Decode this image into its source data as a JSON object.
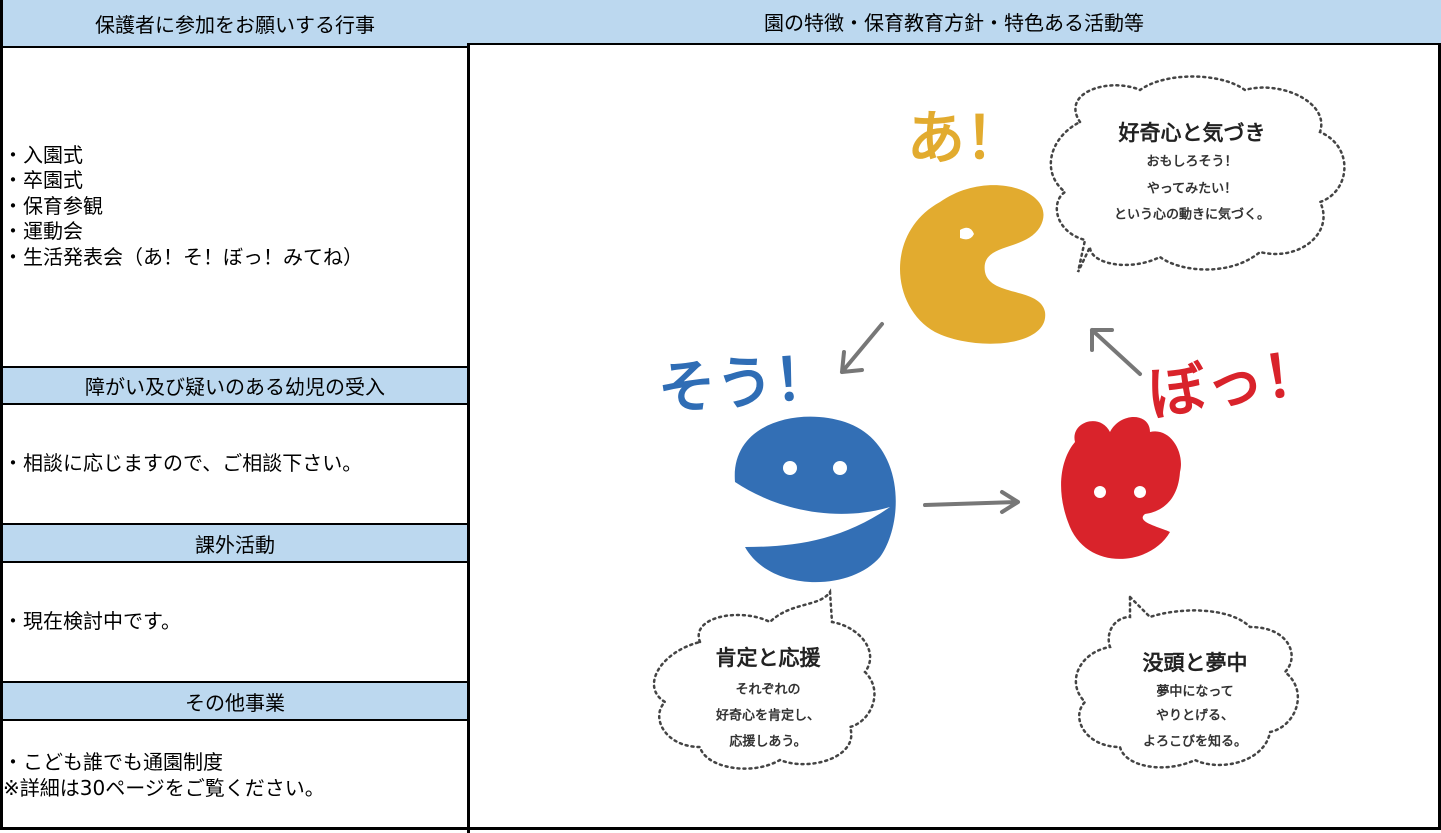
{
  "left": {
    "sections": [
      {
        "title": "保護者に参加をお願いする行事",
        "items": [
          "・入園式",
          "・卒園式",
          "・保育参観",
          "・運動会",
          "・生活発表会（あ！そ！ぼっ！みてね）"
        ]
      },
      {
        "title": "障がい及び疑いのある幼児の受入",
        "items": [
          "・相談に応じますので、ご相談下さい。"
        ]
      },
      {
        "title": "課外活動",
        "items": [
          "・現在検討中です。"
        ]
      },
      {
        "title": "その他事業",
        "items": [
          "・こども誰でも通園制度",
          "※詳細は30ページをご覧ください。"
        ]
      }
    ]
  },
  "right": {
    "title": "園の特徴・保育教育方針・特色ある活動等",
    "illustration": {
      "stages": [
        {
          "exclaim": "あ！",
          "caption": "好奇心と気づき",
          "lines": [
            "おもしろそう！",
            "やってみたい！",
            "という心の動きに気づく。"
          ]
        },
        {
          "exclaim": "そう！",
          "caption": "肯定と応援",
          "lines": [
            "それぞれの",
            "好奇心を肯定し、",
            "応援しあう。"
          ]
        },
        {
          "exclaim": "ぼっ！",
          "caption": "没頭と夢中",
          "lines": [
            "夢中になって",
            "やりとげる、",
            "よろこびを知る。"
          ]
        }
      ]
    }
  }
}
